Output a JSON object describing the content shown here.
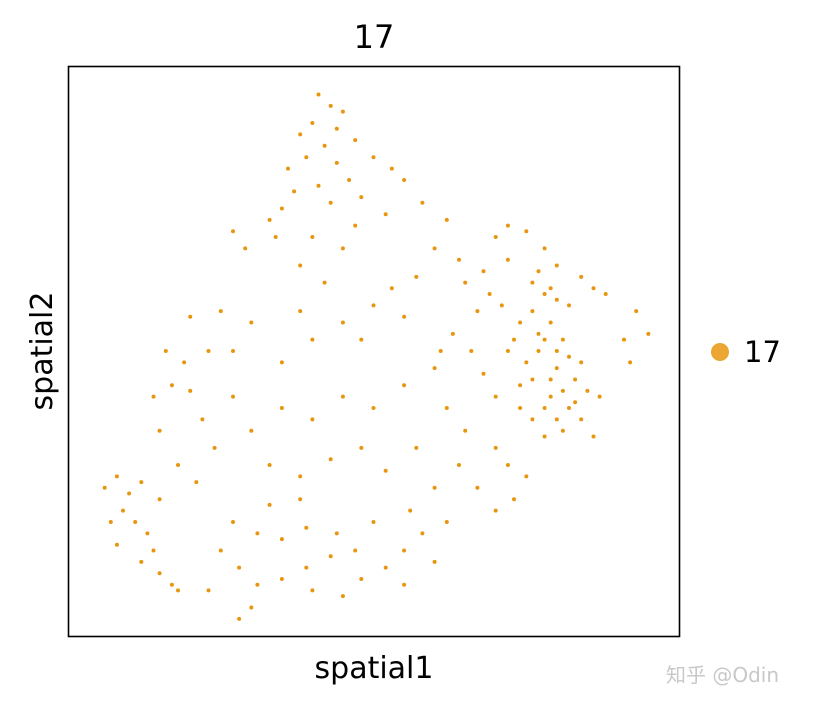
{
  "chart_data": {
    "type": "scatter",
    "title": "17",
    "xlabel": "spatial1",
    "ylabel": "spatial2",
    "xlim": [
      0,
      100
    ],
    "ylim": [
      0,
      100
    ],
    "grid": false,
    "ticks": false,
    "legend_placement": "right",
    "series": [
      {
        "name": "17",
        "color": "#e8960f",
        "points": [
          [
            41,
            95
          ],
          [
            43,
            93
          ],
          [
            45,
            92
          ],
          [
            40,
            90
          ],
          [
            38,
            88
          ],
          [
            44,
            89
          ],
          [
            47,
            87
          ],
          [
            42,
            86
          ],
          [
            39,
            84
          ],
          [
            36,
            82
          ],
          [
            44,
            83
          ],
          [
            46,
            80
          ],
          [
            41,
            79
          ],
          [
            37,
            78
          ],
          [
            35,
            75
          ],
          [
            43,
            76
          ],
          [
            48,
            77
          ],
          [
            50,
            84
          ],
          [
            53,
            82
          ],
          [
            55,
            80
          ],
          [
            52,
            74
          ],
          [
            47,
            72
          ],
          [
            34,
            70
          ],
          [
            33,
            73
          ],
          [
            40,
            70
          ],
          [
            45,
            68
          ],
          [
            38,
            65
          ],
          [
            42,
            62
          ],
          [
            29,
            68
          ],
          [
            27,
            71
          ],
          [
            58,
            76
          ],
          [
            62,
            73
          ],
          [
            60,
            68
          ],
          [
            64,
            66
          ],
          [
            57,
            63
          ],
          [
            53,
            61
          ],
          [
            50,
            58
          ],
          [
            55,
            56
          ],
          [
            48,
            52
          ],
          [
            45,
            55
          ],
          [
            40,
            52
          ],
          [
            35,
            48
          ],
          [
            38,
            57
          ],
          [
            30,
            55
          ],
          [
            25,
            57
          ],
          [
            27,
            50
          ],
          [
            65,
            62
          ],
          [
            68,
            64
          ],
          [
            70,
            70
          ],
          [
            72,
            72
          ],
          [
            75,
            71
          ],
          [
            78,
            68
          ],
          [
            80,
            65
          ],
          [
            84,
            63
          ],
          [
            86,
            61
          ],
          [
            88,
            60
          ],
          [
            82,
            58
          ],
          [
            78,
            60
          ],
          [
            76,
            57
          ],
          [
            74,
            55
          ],
          [
            79,
            55
          ],
          [
            81,
            52
          ],
          [
            77,
            50
          ],
          [
            75,
            48
          ],
          [
            72,
            50
          ],
          [
            80,
            47
          ],
          [
            83,
            45
          ],
          [
            85,
            43
          ],
          [
            87,
            42
          ],
          [
            82,
            40
          ],
          [
            79,
            42
          ],
          [
            76,
            38
          ],
          [
            78,
            35
          ],
          [
            81,
            36
          ],
          [
            84,
            38
          ],
          [
            86,
            35
          ],
          [
            74,
            40
          ],
          [
            70,
            42
          ],
          [
            68,
            46
          ],
          [
            66,
            50
          ],
          [
            63,
            53
          ],
          [
            60,
            47
          ],
          [
            62,
            40
          ],
          [
            65,
            36
          ],
          [
            70,
            33
          ],
          [
            72,
            30
          ],
          [
            75,
            28
          ],
          [
            73,
            24
          ],
          [
            70,
            22
          ],
          [
            67,
            26
          ],
          [
            64,
            30
          ],
          [
            91,
            52
          ],
          [
            93,
            57
          ],
          [
            95,
            53
          ],
          [
            92,
            48
          ],
          [
            55,
            44
          ],
          [
            50,
            40
          ],
          [
            45,
            42
          ],
          [
            40,
            38
          ],
          [
            35,
            40
          ],
          [
            30,
            36
          ],
          [
            27,
            42
          ],
          [
            33,
            30
          ],
          [
            38,
            28
          ],
          [
            43,
            31
          ],
          [
            48,
            33
          ],
          [
            52,
            29
          ],
          [
            57,
            33
          ],
          [
            60,
            26
          ],
          [
            56,
            22
          ],
          [
            50,
            20
          ],
          [
            47,
            15
          ],
          [
            43,
            14
          ],
          [
            39,
            12
          ],
          [
            35,
            10
          ],
          [
            31,
            9
          ],
          [
            28,
            12
          ],
          [
            25,
            15
          ],
          [
            27,
            20
          ],
          [
            31,
            18
          ],
          [
            35,
            17
          ],
          [
            39,
            19
          ],
          [
            44,
            18
          ],
          [
            48,
            10
          ],
          [
            52,
            12
          ],
          [
            55,
            15
          ],
          [
            58,
            18
          ],
          [
            62,
            20
          ],
          [
            60,
            13
          ],
          [
            30,
            5
          ],
          [
            40,
            8
          ],
          [
            45,
            7
          ],
          [
            55,
            9
          ],
          [
            38,
            24
          ],
          [
            33,
            23
          ],
          [
            6,
            26
          ],
          [
            8,
            28
          ],
          [
            10,
            25
          ],
          [
            9,
            22
          ],
          [
            11,
            20
          ],
          [
            13,
            18
          ],
          [
            14,
            15
          ],
          [
            12,
            13
          ],
          [
            15,
            11
          ],
          [
            17,
            9
          ],
          [
            18,
            8
          ],
          [
            8,
            16
          ],
          [
            7,
            20
          ],
          [
            12,
            27
          ],
          [
            15,
            24
          ],
          [
            18,
            30
          ],
          [
            15,
            36
          ],
          [
            14,
            42
          ],
          [
            17,
            44
          ],
          [
            20,
            43
          ],
          [
            22,
            38
          ],
          [
            24,
            33
          ],
          [
            21,
            27
          ],
          [
            19,
            48
          ],
          [
            16,
            50
          ],
          [
            23,
            50
          ],
          [
            20,
            56
          ],
          [
            23,
            8
          ],
          [
            28,
            3
          ],
          [
            61,
            50
          ],
          [
            67,
            57
          ],
          [
            76,
            62
          ],
          [
            77,
            64
          ],
          [
            79,
            61
          ],
          [
            80,
            59
          ],
          [
            77,
            53
          ],
          [
            78,
            52
          ],
          [
            80,
            50
          ],
          [
            82,
            49
          ],
          [
            79,
            45
          ],
          [
            81,
            43
          ],
          [
            83,
            41
          ],
          [
            80,
            38
          ],
          [
            78,
            40
          ],
          [
            84,
            48
          ],
          [
            76,
            45
          ],
          [
            74,
            44
          ],
          [
            73,
            52
          ],
          [
            71,
            58
          ],
          [
            69,
            60
          ],
          [
            72,
            66
          ]
        ]
      }
    ]
  },
  "watermark": "知乎 @Odin"
}
